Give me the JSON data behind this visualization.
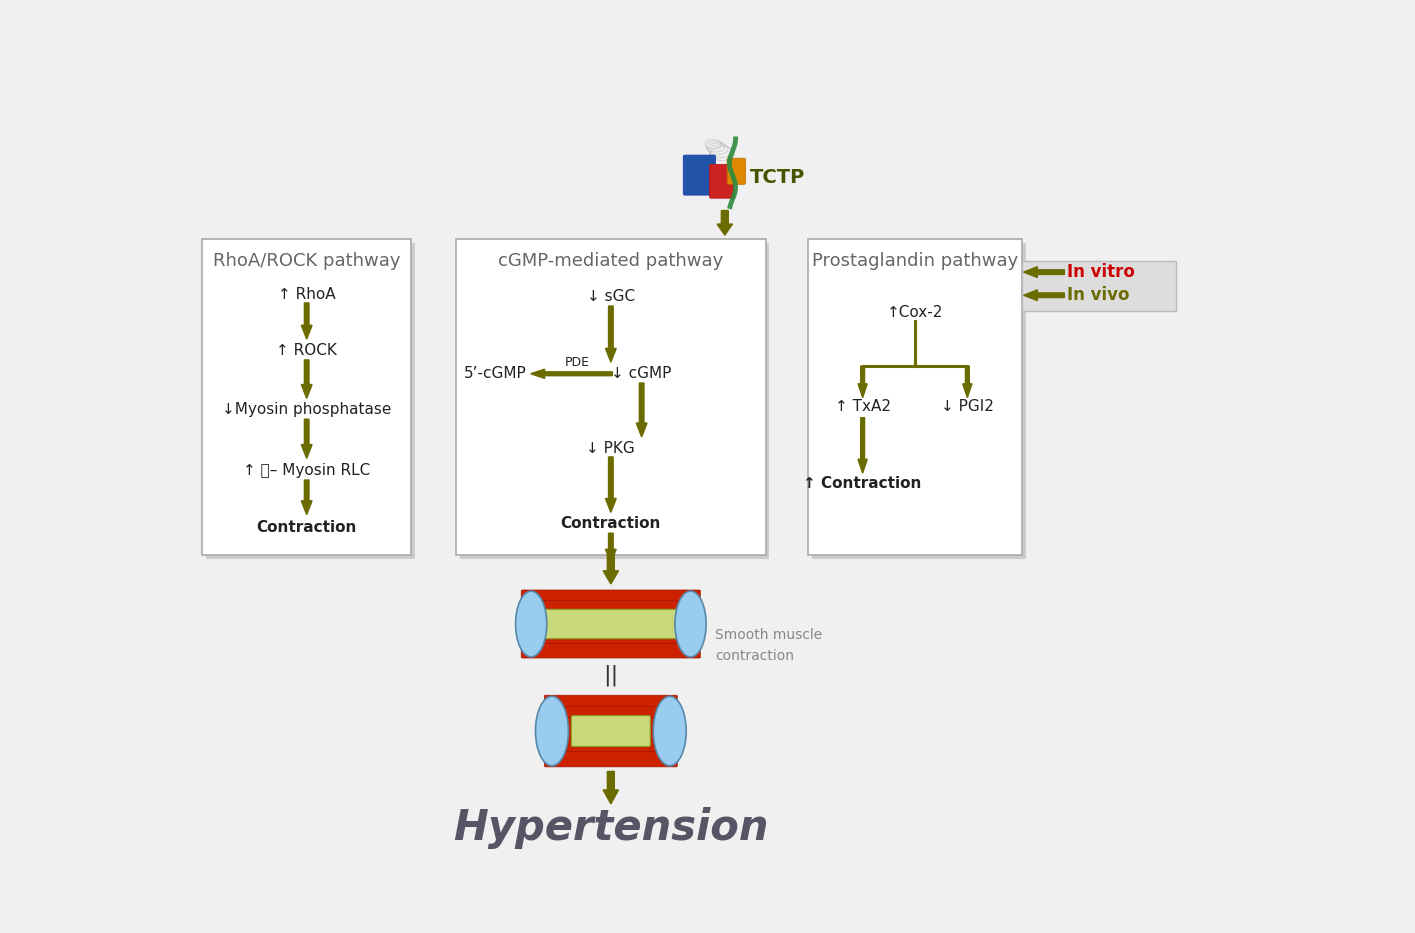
{
  "bg_color": "#f0f0f0",
  "olive": "#6b6b00",
  "red_color": "#cc0000",
  "box_bg": "#ffffff",
  "border_color": "#aaaaaa",
  "shadow_color": "#cccccc",
  "text_dark": "#222222",
  "text_gray": "#555555",
  "title_gray": "#666666",
  "hypertension_color": "#555566",
  "smooth_label_color": "#888888",
  "pathway_title_fs": 13,
  "step_fs": 11,
  "hyper_fs": 30,
  "smooth_fs": 10,
  "invitro_fs": 12,
  "tctp_fs": 14,
  "left_title": "RhoA/ROCK pathway",
  "left_steps": [
    "↑ RhoA",
    "↑ ROCK",
    "↓Myosin phosphatase",
    "↑ Ⓙ– Myosin RLC",
    "Contraction"
  ],
  "center_title": "cGMP-mediated pathway",
  "center_steps": [
    "↓ sGC",
    "↓ cGMP",
    "↓ PKG",
    "Contraction"
  ],
  "five_cgmp": "5’-cGMP",
  "pde_label": "PDE",
  "right_title": "Prostaglandin pathway",
  "cox2": "↑Cox-2",
  "txa2": "↑ TxA2",
  "pgi2": "↓ PGI2",
  "right_contraction": "↑ Contraction",
  "invitro": "In vitro",
  "invivo": "In vivo",
  "hyper_text": "Hypertension",
  "smooth_text": "Smooth muscle\ncontraction"
}
